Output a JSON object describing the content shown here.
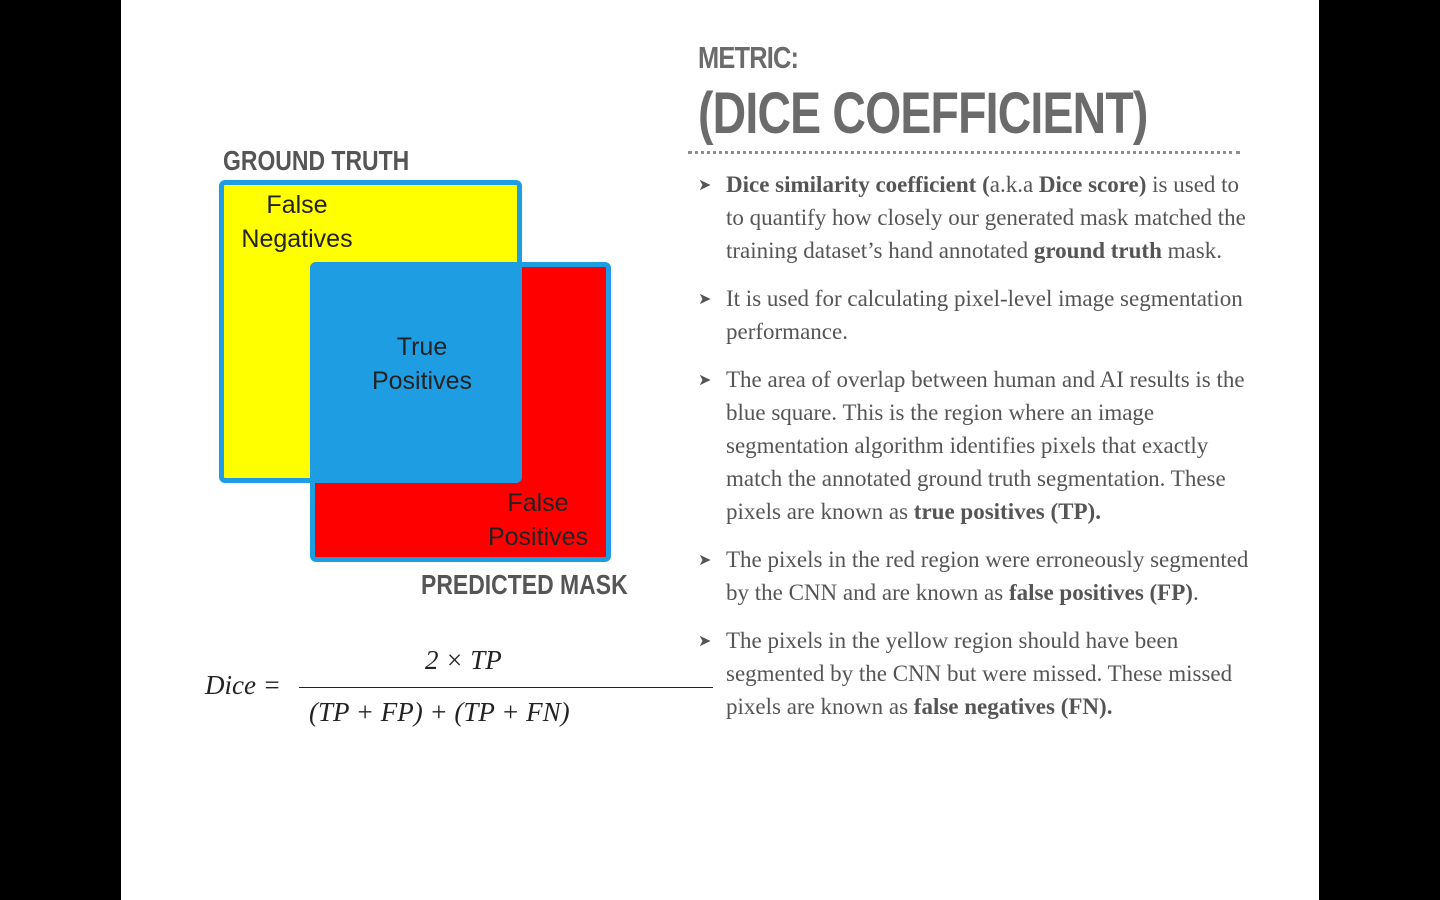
{
  "title": {
    "line1": "METRIC:",
    "line2": "(DICE COEFFICIENT)"
  },
  "diagram": {
    "ground_truth_label": "GROUND TRUTH",
    "predicted_mask_label": "PREDICTED MASK",
    "false_negatives": [
      "False",
      "Negatives"
    ],
    "true_positives": [
      "True",
      "Positives"
    ],
    "false_positives": [
      "False",
      "Positives"
    ],
    "colors": {
      "false_negatives": "#ffff00",
      "true_positives": "#1e9de3",
      "false_positives": "#ff0000",
      "border": "#1e9de3"
    }
  },
  "formula": {
    "lhs": "Dice =",
    "numerator": "2 × TP",
    "denominator": "(TP + FP) + (TP + FN)"
  },
  "bullets": [
    {
      "parts": [
        {
          "text": "Dice similarity coefficient (",
          "bold": true
        },
        {
          "text": "a.k.a ",
          "bold": false
        },
        {
          "text": "Dice score)",
          "bold": true
        },
        {
          "text": " is used to to quantify how closely our generated mask matched the training dataset’s hand annotated ",
          "bold": false
        },
        {
          "text": "ground truth",
          "bold": true
        },
        {
          "text": " mask.",
          "bold": false
        }
      ]
    },
    {
      "parts": [
        {
          "text": "It is used for calculating pixel-level image segmentation performance.",
          "bold": false
        }
      ]
    },
    {
      "parts": [
        {
          "text": "The area of overlap between human and AI results is the blue square. This is the region where an image segmentation algorithm identifies pixels that exactly match the annotated ground truth segmentation. These pixels are known as ",
          "bold": false
        },
        {
          "text": "true positives (TP).",
          "bold": true
        }
      ]
    },
    {
      "parts": [
        {
          "text": "The pixels in the red region were erroneously segmented by the CNN and are known as ",
          "bold": false
        },
        {
          "text": "false positives (FP)",
          "bold": true
        },
        {
          "text": ".",
          "bold": false
        }
      ]
    },
    {
      "parts": [
        {
          "text": "The pixels in the yellow region should have been segmented by the CNN but were missed. These missed pixels are known as ",
          "bold": false
        },
        {
          "text": "false negatives (FN).",
          "bold": true
        }
      ]
    }
  ],
  "bullet_marker": "➤"
}
